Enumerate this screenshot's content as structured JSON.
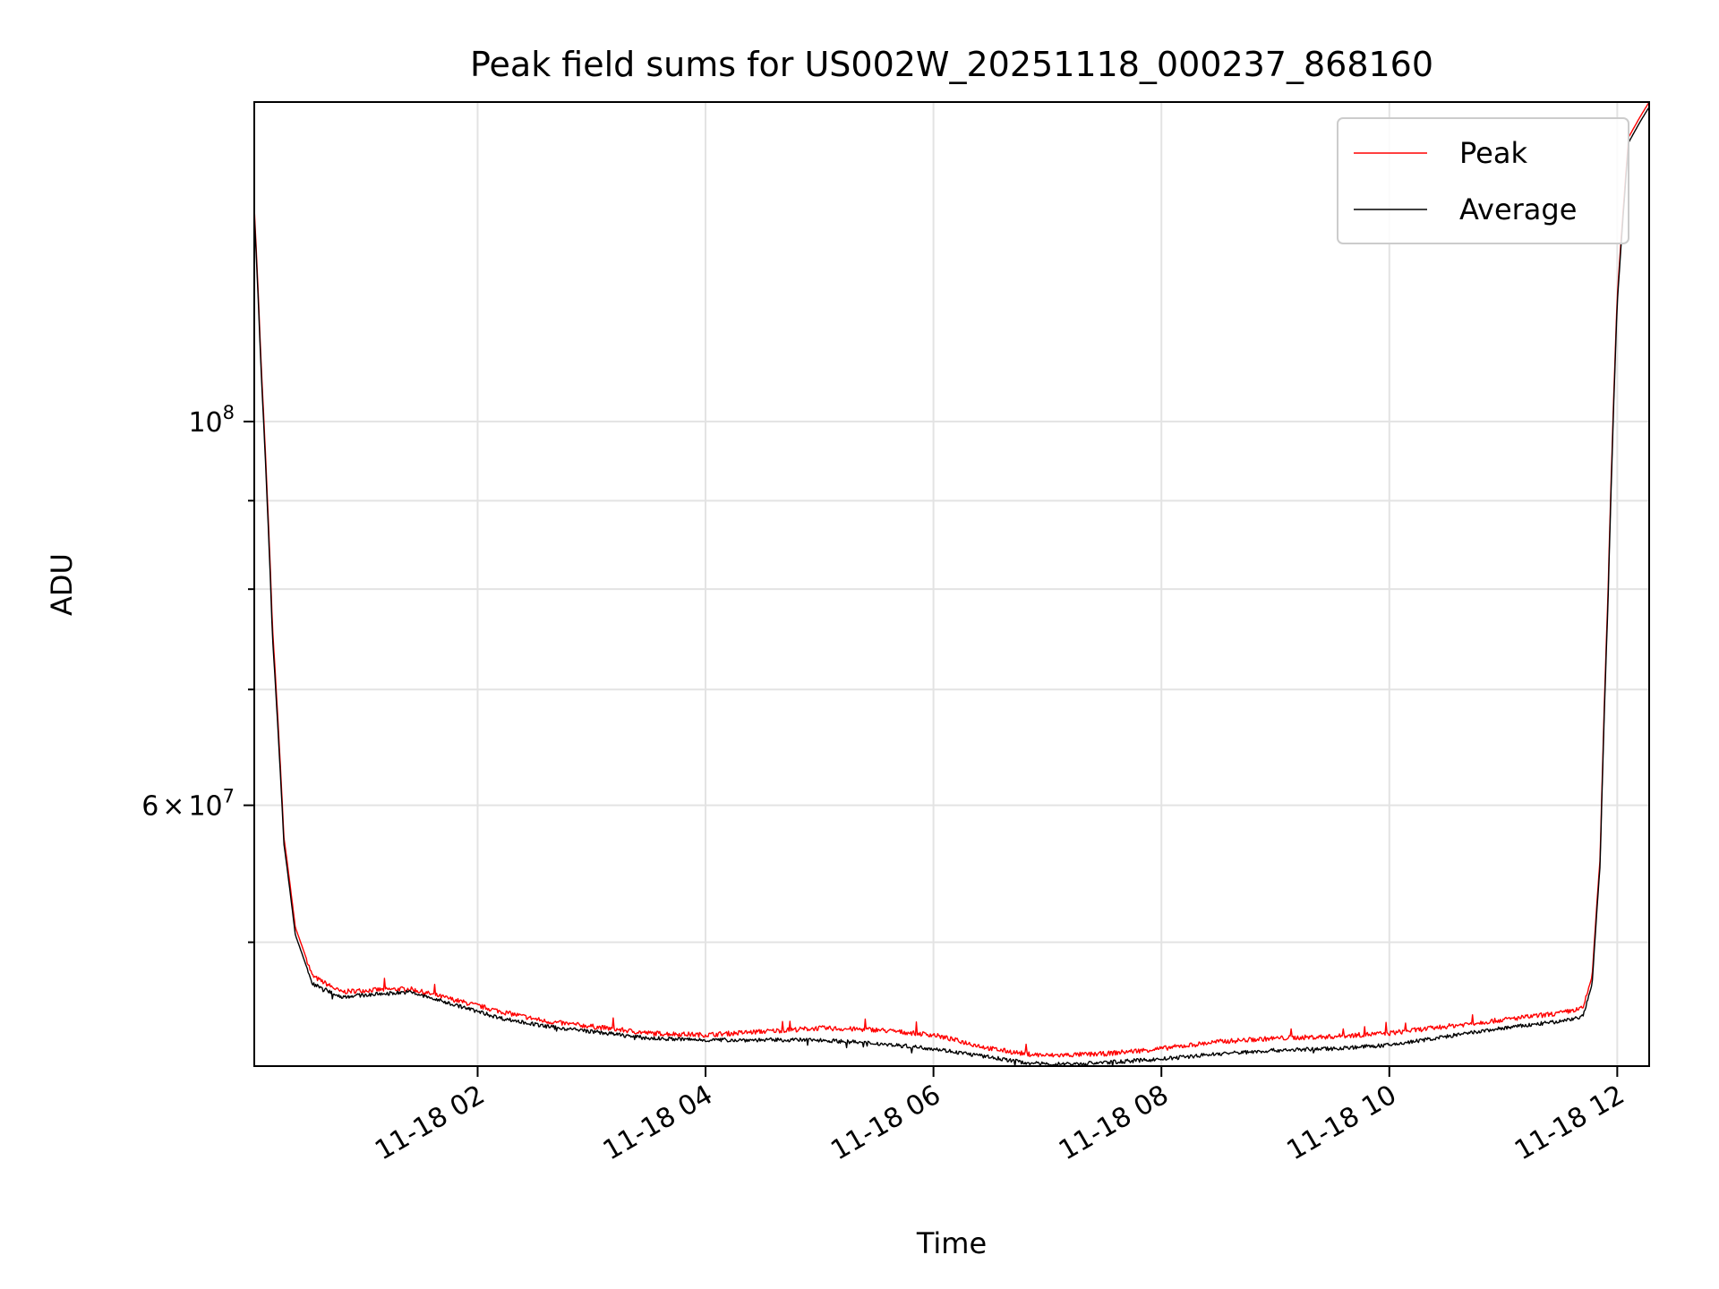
{
  "chart_data": {
    "type": "line",
    "title": "Peak field sums for US002W_20251118_000237_868160",
    "xlabel": "Time",
    "ylabel": "ADU",
    "yscale": "log",
    "ylim": [
      42400000,
      153000000
    ],
    "xlim_hours": [
      0.04,
      12.28
    ],
    "grid": true,
    "legend_position": "top-right",
    "x_ticks": [
      {
        "hour": 2,
        "label": "11-18 02"
      },
      {
        "hour": 4,
        "label": "11-18 04"
      },
      {
        "hour": 6,
        "label": "11-18 06"
      },
      {
        "hour": 8,
        "label": "11-18 08"
      },
      {
        "hour": 10,
        "label": "11-18 10"
      },
      {
        "hour": 12,
        "label": "11-18 12"
      }
    ],
    "y_major_ticks": [
      {
        "value": 100000000,
        "base": "10",
        "exponent": "8"
      },
      {
        "value": 60000000,
        "mantissa": "6",
        "times": "×",
        "base": "10",
        "exponent": "7"
      }
    ],
    "y_minor_ticks": [
      50000000,
      70000000,
      80000000,
      90000000
    ],
    "series": [
      {
        "name": "Peak",
        "color": "#ff0000",
        "x_hours": [
          0.04,
          0.1,
          0.2,
          0.3,
          0.4,
          0.55,
          0.8,
          1.0,
          1.4,
          1.8,
          2.2,
          2.6,
          3.0,
          3.5,
          4.0,
          4.5,
          5.0,
          5.5,
          6.0,
          6.5,
          6.8,
          7.0,
          7.5,
          8.0,
          8.5,
          9.0,
          9.5,
          10.0,
          10.5,
          11.0,
          11.5,
          11.7,
          11.78,
          11.85,
          11.92,
          12.0,
          12.1,
          12.2,
          12.28
        ],
        "values": [
          133000000,
          108000000,
          76000000,
          57500000,
          51000000,
          47800000,
          46800000,
          46900000,
          47000000,
          46300000,
          45600000,
          45000000,
          44700000,
          44300000,
          44200000,
          44400000,
          44600000,
          44500000,
          44200000,
          43400000,
          43100000,
          43000000,
          43100000,
          43400000,
          43800000,
          44000000,
          44100000,
          44300000,
          44700000,
          45100000,
          45500000,
          45800000,
          47800000,
          56000000,
          80000000,
          118000000,
          146000000,
          150000000,
          153000000
        ]
      },
      {
        "name": "Average",
        "color": "#000000",
        "x_hours": [
          0.04,
          0.1,
          0.2,
          0.3,
          0.4,
          0.55,
          0.8,
          1.0,
          1.4,
          1.8,
          2.2,
          2.6,
          3.0,
          3.5,
          4.0,
          4.5,
          5.0,
          5.5,
          6.0,
          6.5,
          6.8,
          7.0,
          7.5,
          8.0,
          8.5,
          9.0,
          9.5,
          10.0,
          10.5,
          11.0,
          11.5,
          11.7,
          11.78,
          11.85,
          11.92,
          12.0,
          12.1,
          12.2,
          12.28
        ],
        "values": [
          132000000,
          107000000,
          75000000,
          57000000,
          50500000,
          47300000,
          46500000,
          46600000,
          46800000,
          46000000,
          45200000,
          44700000,
          44400000,
          44000000,
          43900000,
          43900000,
          43900000,
          43700000,
          43400000,
          42900000,
          42600000,
          42500000,
          42600000,
          42800000,
          43100000,
          43300000,
          43400000,
          43600000,
          44100000,
          44600000,
          45000000,
          45300000,
          47300000,
          55500000,
          79000000,
          117000000,
          145000000,
          149000000,
          152000000
        ]
      }
    ]
  }
}
